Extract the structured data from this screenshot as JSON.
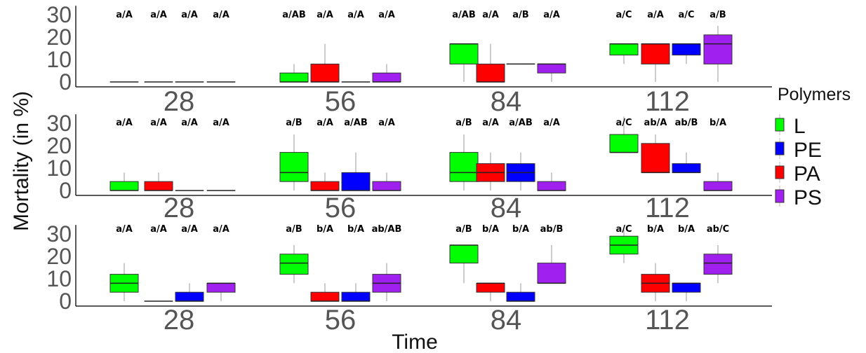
{
  "chart_data": {
    "type": "boxplot",
    "xlabel": "Time",
    "ylabel": "Mortality (in %)",
    "ylim": [
      0,
      34
    ],
    "yticks": [
      0,
      10,
      20,
      30
    ],
    "x_categories": [
      "28",
      "56",
      "84",
      "112"
    ],
    "legend": {
      "title": "Polymers",
      "placement": "right",
      "entries": [
        {
          "name": "L",
          "color": "#00ff00"
        },
        {
          "name": "PE",
          "color": "#0000ff"
        },
        {
          "name": "PA",
          "color": "#ff0000"
        },
        {
          "name": "PS",
          "color": "#a020f0"
        }
      ]
    },
    "groups": [
      "L",
      "PE",
      "PA",
      "PS"
    ],
    "panels": [
      {
        "boxes": {
          "28": [
            {
              "group": "L",
              "q1": 0,
              "median": 0,
              "q3": 0,
              "min": 0,
              "max": 0,
              "label": "a/A"
            },
            {
              "group": "PA",
              "q1": 0,
              "median": 0,
              "q3": 0,
              "min": 0,
              "max": 0,
              "label": "a/A"
            },
            {
              "group": "PE",
              "q1": 0,
              "median": 0,
              "q3": 0,
              "min": 0,
              "max": 0,
              "label": "a/A"
            },
            {
              "group": "PS",
              "q1": 0,
              "median": 0,
              "q3": 0,
              "min": 0,
              "max": 0,
              "label": "a/A"
            }
          ],
          "56": [
            {
              "group": "L",
              "q1": 0,
              "median": 0,
              "q3": 4,
              "min": 0,
              "max": 8,
              "label": "a/AB"
            },
            {
              "group": "PA",
              "q1": 0,
              "median": 0,
              "q3": 8,
              "min": 0,
              "max": 17,
              "label": "a/A"
            },
            {
              "group": "PE",
              "q1": 0,
              "median": 0,
              "q3": 0,
              "min": 0,
              "max": 0,
              "label": "a/A"
            },
            {
              "group": "PS",
              "q1": 0,
              "median": 0,
              "q3": 4,
              "min": 0,
              "max": 8,
              "label": "a/A"
            }
          ],
          "84": [
            {
              "group": "L",
              "q1": 8,
              "median": 17,
              "q3": 17,
              "min": 0,
              "max": 17,
              "label": "a/AB"
            },
            {
              "group": "PA",
              "q1": 0,
              "median": 0,
              "q3": 8,
              "min": 0,
              "max": 17,
              "label": "a/A"
            },
            {
              "group": "PE",
              "q1": 8,
              "median": 8,
              "q3": 8,
              "min": 8,
              "max": 8,
              "label": "a/B"
            },
            {
              "group": "PS",
              "q1": 4,
              "median": 8,
              "q3": 8,
              "min": 0,
              "max": 8,
              "label": "a/A"
            }
          ],
          "112": [
            {
              "group": "L",
              "q1": 12,
              "median": 17,
              "q3": 17,
              "min": 8,
              "max": 17,
              "label": "a/C"
            },
            {
              "group": "PA",
              "q1": 8,
              "median": 17,
              "q3": 17,
              "min": 0,
              "max": 17,
              "label": "a/A"
            },
            {
              "group": "PE",
              "q1": 12,
              "median": 17,
              "q3": 17,
              "min": 8,
              "max": 17,
              "label": "a/C"
            },
            {
              "group": "PS",
              "q1": 8,
              "median": 17,
              "q3": 21,
              "min": 0,
              "max": 25,
              "label": "a/B"
            }
          ]
        }
      },
      {
        "boxes": {
          "28": [
            {
              "group": "L",
              "q1": 0,
              "median": 0,
              "q3": 4,
              "min": 0,
              "max": 8,
              "label": "a/A"
            },
            {
              "group": "PA",
              "q1": 0,
              "median": 0,
              "q3": 4,
              "min": 0,
              "max": 8,
              "label": "a/A"
            },
            {
              "group": "PE",
              "q1": 0,
              "median": 0,
              "q3": 0,
              "min": 0,
              "max": 0,
              "label": "a/A"
            },
            {
              "group": "PS",
              "q1": 0,
              "median": 0,
              "q3": 0,
              "min": 0,
              "max": 0,
              "label": "a/A"
            }
          ],
          "56": [
            {
              "group": "L",
              "q1": 4,
              "median": 8,
              "q3": 17,
              "min": 0,
              "max": 25,
              "label": "a/B"
            },
            {
              "group": "PA",
              "q1": 0,
              "median": 0,
              "q3": 4,
              "min": 0,
              "max": 8,
              "label": "a/A"
            },
            {
              "group": "PE",
              "q1": 0,
              "median": 0,
              "q3": 8,
              "min": 0,
              "max": 17,
              "label": "a/AB"
            },
            {
              "group": "PS",
              "q1": 0,
              "median": 0,
              "q3": 4,
              "min": 0,
              "max": 8,
              "label": "a/A"
            }
          ],
          "84": [
            {
              "group": "L",
              "q1": 4,
              "median": 8,
              "q3": 17,
              "min": 0,
              "max": 25,
              "label": "a/B"
            },
            {
              "group": "PA",
              "q1": 4,
              "median": 8,
              "q3": 12,
              "min": 0,
              "max": 17,
              "label": "a/A"
            },
            {
              "group": "PE",
              "q1": 4,
              "median": 8,
              "q3": 12,
              "min": 0,
              "max": 17,
              "label": "a/AB"
            },
            {
              "group": "PS",
              "q1": 0,
              "median": 0,
              "q3": 4,
              "min": 0,
              "max": 8,
              "label": "a/A"
            }
          ],
          "112": [
            {
              "group": "L",
              "q1": 17,
              "median": 17,
              "q3": 25,
              "min": 17,
              "max": 33,
              "label": "a/C"
            },
            {
              "group": "PA",
              "q1": 8,
              "median": 8,
              "q3": 21,
              "min": 8,
              "max": 25,
              "label": "ab/A"
            },
            {
              "group": "PE",
              "q1": 8,
              "median": 8,
              "q3": 12,
              "min": 8,
              "max": 17,
              "label": "ab/B"
            },
            {
              "group": "PS",
              "q1": 0,
              "median": 0,
              "q3": 4,
              "min": 0,
              "max": 8,
              "label": "b/A"
            }
          ]
        }
      },
      {
        "boxes": {
          "28": [
            {
              "group": "L",
              "q1": 4,
              "median": 8,
              "q3": 12,
              "min": 0,
              "max": 17,
              "label": "a/A"
            },
            {
              "group": "PA",
              "q1": 0,
              "median": 0,
              "q3": 0,
              "min": 0,
              "max": 0,
              "label": "a/A"
            },
            {
              "group": "PE",
              "q1": 0,
              "median": 0,
              "q3": 4,
              "min": 0,
              "max": 8,
              "label": "a/A"
            },
            {
              "group": "PS",
              "q1": 4,
              "median": 8,
              "q3": 8,
              "min": 0,
              "max": 8,
              "label": "a/A"
            }
          ],
          "56": [
            {
              "group": "L",
              "q1": 12,
              "median": 17,
              "q3": 21,
              "min": 8,
              "max": 25,
              "label": "a/B"
            },
            {
              "group": "PA",
              "q1": 0,
              "median": 0,
              "q3": 4,
              "min": 0,
              "max": 8,
              "label": "b/A"
            },
            {
              "group": "PE",
              "q1": 0,
              "median": 0,
              "q3": 4,
              "min": 0,
              "max": 8,
              "label": "b/A"
            },
            {
              "group": "PS",
              "q1": 4,
              "median": 8,
              "q3": 12,
              "min": 0,
              "max": 17,
              "label": "ab/AB"
            }
          ],
          "84": [
            {
              "group": "L",
              "q1": 17,
              "median": 25,
              "q3": 25,
              "min": 8,
              "max": 25,
              "label": "a/B"
            },
            {
              "group": "PA",
              "q1": 4,
              "median": 8,
              "q3": 8,
              "min": 0,
              "max": 8,
              "label": "b/A"
            },
            {
              "group": "PE",
              "q1": 0,
              "median": 0,
              "q3": 4,
              "min": 0,
              "max": 8,
              "label": "b/A"
            },
            {
              "group": "PS",
              "q1": 8,
              "median": 8,
              "q3": 17,
              "min": 8,
              "max": 25,
              "label": "ab/B"
            }
          ],
          "112": [
            {
              "group": "L",
              "q1": 21,
              "median": 25,
              "q3": 29,
              "min": 17,
              "max": 33,
              "label": "a/C"
            },
            {
              "group": "PA",
              "q1": 4,
              "median": 8,
              "q3": 12,
              "min": 0,
              "max": 17,
              "label": "b/A"
            },
            {
              "group": "PE",
              "q1": 4,
              "median": 8,
              "q3": 8,
              "min": 0,
              "max": 8,
              "label": "b/A"
            },
            {
              "group": "PS",
              "q1": 12,
              "median": 17,
              "q3": 21,
              "min": 8,
              "max": 25,
              "label": "ab/C"
            }
          ]
        }
      }
    ]
  }
}
